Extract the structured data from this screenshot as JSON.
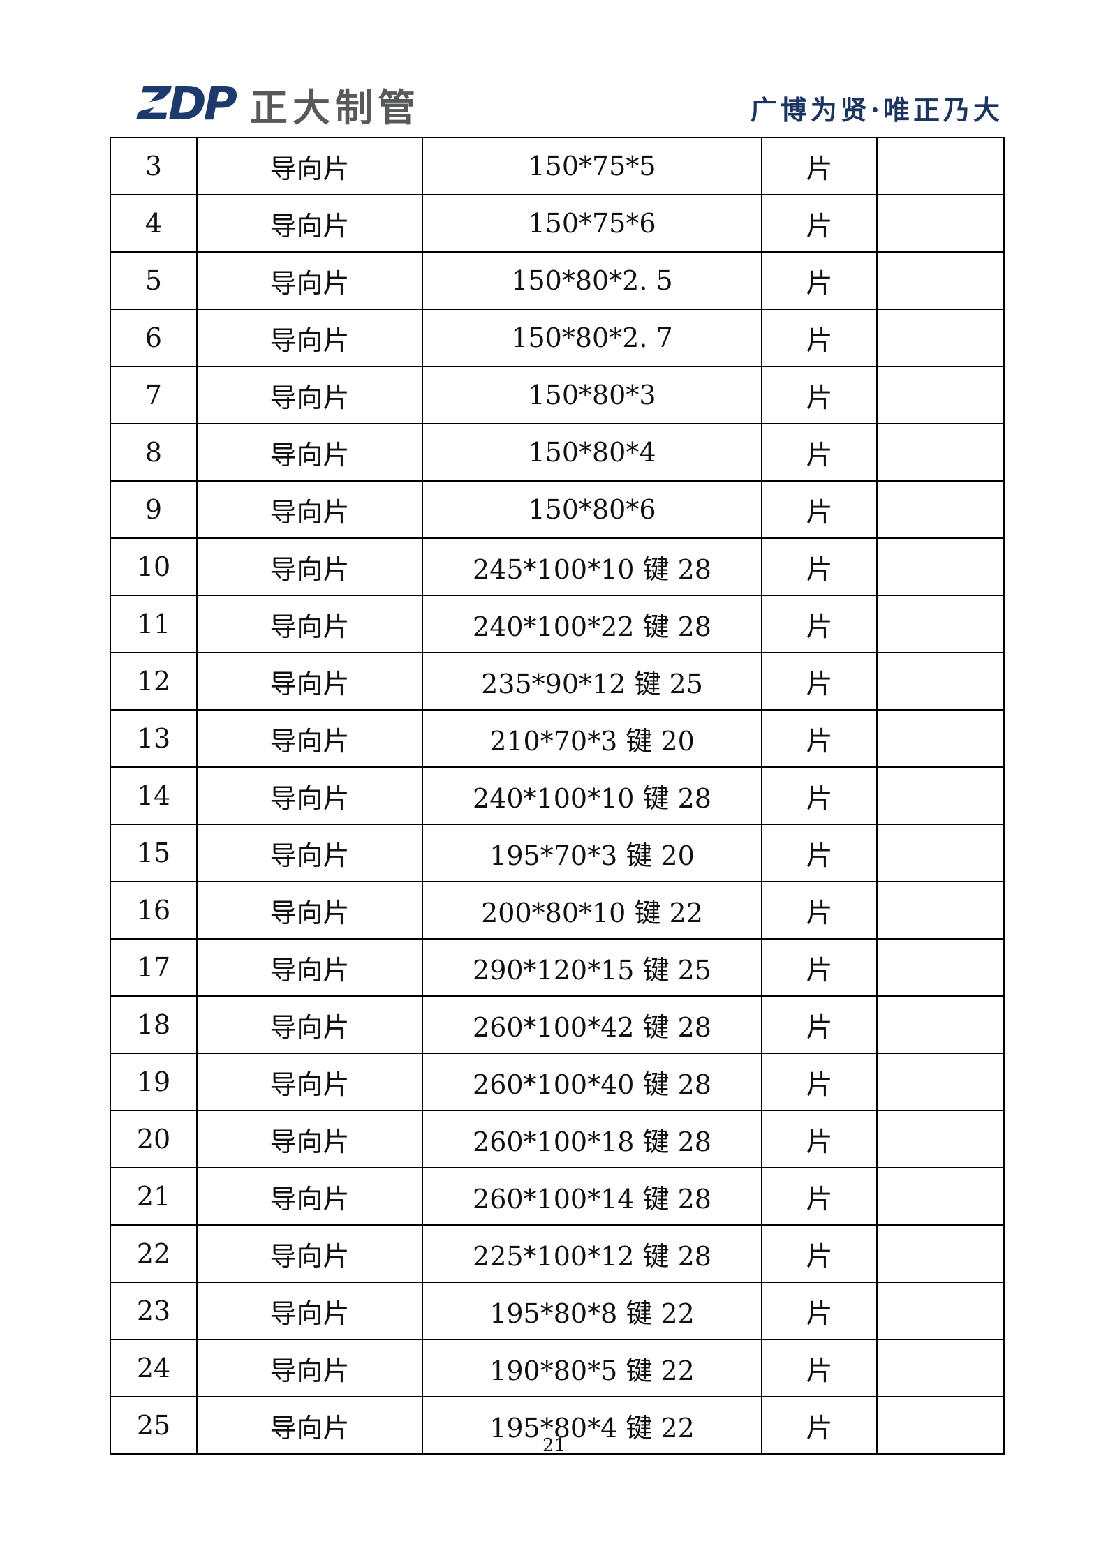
{
  "header": {
    "logo_mark": "ZDP",
    "company_name": "正大制管",
    "slogan": "广博为贤·唯正乃大"
  },
  "theme": {
    "logo_navy": "#1c3a6b",
    "company_gray": "#58595b",
    "slogan_navy": "#1b3560",
    "border_black": "#000000",
    "text_black": "#111111"
  },
  "table": {
    "rows": [
      {
        "no": "3",
        "name": "导向片",
        "spec": "150*75*5",
        "unit": "片",
        "note": ""
      },
      {
        "no": "4",
        "name": "导向片",
        "spec": "150*75*6",
        "unit": "片",
        "note": ""
      },
      {
        "no": "5",
        "name": "导向片",
        "spec": "150*80*2. 5",
        "unit": "片",
        "note": ""
      },
      {
        "no": "6",
        "name": "导向片",
        "spec": "150*80*2. 7",
        "unit": "片",
        "note": ""
      },
      {
        "no": "7",
        "name": "导向片",
        "spec": "150*80*3",
        "unit": "片",
        "note": ""
      },
      {
        "no": "8",
        "name": "导向片",
        "spec": "150*80*4",
        "unit": "片",
        "note": ""
      },
      {
        "no": "9",
        "name": "导向片",
        "spec": "150*80*6",
        "unit": "片",
        "note": ""
      },
      {
        "no": "10",
        "name": "导向片",
        "spec": "245*100*10 键 28",
        "unit": "片",
        "note": ""
      },
      {
        "no": "11",
        "name": "导向片",
        "spec": "240*100*22 键 28",
        "unit": "片",
        "note": ""
      },
      {
        "no": "12",
        "name": "导向片",
        "spec": "235*90*12 键 25",
        "unit": "片",
        "note": ""
      },
      {
        "no": "13",
        "name": "导向片",
        "spec": "210*70*3 键 20",
        "unit": "片",
        "note": ""
      },
      {
        "no": "14",
        "name": "导向片",
        "spec": "240*100*10 键 28",
        "unit": "片",
        "note": ""
      },
      {
        "no": "15",
        "name": "导向片",
        "spec": "195*70*3 键 20",
        "unit": "片",
        "note": ""
      },
      {
        "no": "16",
        "name": "导向片",
        "spec": "200*80*10 键 22",
        "unit": "片",
        "note": ""
      },
      {
        "no": "17",
        "name": "导向片",
        "spec": "290*120*15 键 25",
        "unit": "片",
        "note": ""
      },
      {
        "no": "18",
        "name": "导向片",
        "spec": "260*100*42 键 28",
        "unit": "片",
        "note": ""
      },
      {
        "no": "19",
        "name": "导向片",
        "spec": "260*100*40 键 28",
        "unit": "片",
        "note": ""
      },
      {
        "no": "20",
        "name": "导向片",
        "spec": "260*100*18 键 28",
        "unit": "片",
        "note": ""
      },
      {
        "no": "21",
        "name": "导向片",
        "spec": "260*100*14 键 28",
        "unit": "片",
        "note": ""
      },
      {
        "no": "22",
        "name": "导向片",
        "spec": "225*100*12 键 28",
        "unit": "片",
        "note": ""
      },
      {
        "no": "23",
        "name": "导向片",
        "spec": "195*80*8 键 22",
        "unit": "片",
        "note": ""
      },
      {
        "no": "24",
        "name": "导向片",
        "spec": "190*80*5 键 22",
        "unit": "片",
        "note": ""
      },
      {
        "no": "25",
        "name": "导向片",
        "spec": "195*80*4 键 22",
        "unit": "片",
        "note": ""
      }
    ]
  },
  "footer": {
    "page_number": "21"
  }
}
